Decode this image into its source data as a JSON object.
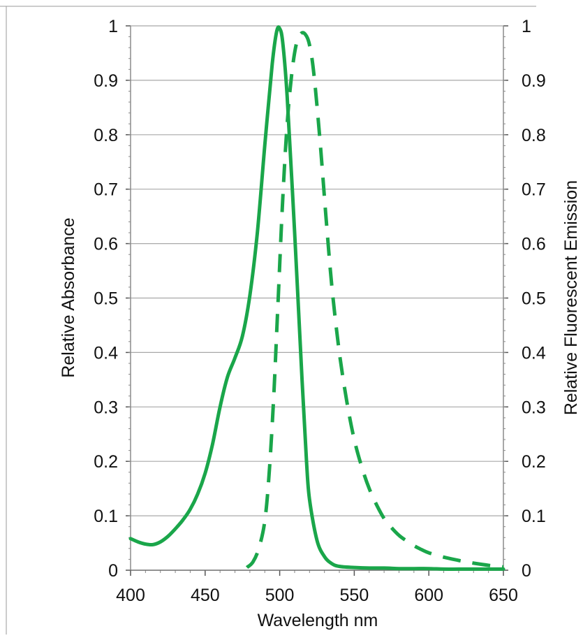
{
  "chart_data": {
    "type": "line",
    "xlabel": "Wavelength nm",
    "ylabel_left": "Relative Absorbance",
    "ylabel_right": "Relative Fluorescent Emission",
    "xlim": [
      400,
      650
    ],
    "ylim": [
      0,
      1
    ],
    "x_ticks": [
      "400",
      "450",
      "500",
      "550",
      "600",
      "650"
    ],
    "y_ticks": [
      "0",
      "0.1",
      "0.2",
      "0.3",
      "0.4",
      "0.5",
      "0.6",
      "0.7",
      "0.8",
      "0.9",
      "1"
    ],
    "grid": true,
    "color": "#1aa64a",
    "series": [
      {
        "style": "solid",
        "axis": "left",
        "points": [
          [
            400,
            0.058
          ],
          [
            405,
            0.052
          ],
          [
            410,
            0.048
          ],
          [
            415,
            0.047
          ],
          [
            420,
            0.052
          ],
          [
            425,
            0.062
          ],
          [
            430,
            0.076
          ],
          [
            435,
            0.092
          ],
          [
            440,
            0.112
          ],
          [
            445,
            0.14
          ],
          [
            450,
            0.178
          ],
          [
            455,
            0.232
          ],
          [
            460,
            0.3
          ],
          [
            465,
            0.355
          ],
          [
            470,
            0.39
          ],
          [
            475,
            0.43
          ],
          [
            480,
            0.505
          ],
          [
            485,
            0.62
          ],
          [
            490,
            0.78
          ],
          [
            495,
            0.93
          ],
          [
            498,
            0.99
          ],
          [
            500,
            0.995
          ],
          [
            502,
            0.97
          ],
          [
            505,
            0.87
          ],
          [
            510,
            0.62
          ],
          [
            515,
            0.35
          ],
          [
            518,
            0.2
          ],
          [
            520,
            0.13
          ],
          [
            525,
            0.055
          ],
          [
            530,
            0.025
          ],
          [
            535,
            0.012
          ],
          [
            540,
            0.007
          ],
          [
            550,
            0.005
          ],
          [
            560,
            0.004
          ],
          [
            570,
            0.004
          ],
          [
            580,
            0.003
          ],
          [
            590,
            0.003
          ],
          [
            600,
            0.003
          ],
          [
            610,
            0.002
          ],
          [
            620,
            0.002
          ],
          [
            630,
            0.002
          ],
          [
            640,
            0.002
          ],
          [
            650,
            0.002
          ]
        ]
      },
      {
        "style": "dashed",
        "axis": "right",
        "points": [
          [
            478,
            0.005
          ],
          [
            482,
            0.015
          ],
          [
            486,
            0.04
          ],
          [
            490,
            0.09
          ],
          [
            493,
            0.18
          ],
          [
            496,
            0.32
          ],
          [
            499,
            0.5
          ],
          [
            502,
            0.68
          ],
          [
            505,
            0.82
          ],
          [
            508,
            0.91
          ],
          [
            511,
            0.965
          ],
          [
            514,
            0.985
          ],
          [
            517,
            0.985
          ],
          [
            520,
            0.965
          ],
          [
            523,
            0.91
          ],
          [
            527,
            0.79
          ],
          [
            531,
            0.65
          ],
          [
            535,
            0.52
          ],
          [
            540,
            0.4
          ],
          [
            545,
            0.31
          ],
          [
            550,
            0.24
          ],
          [
            555,
            0.19
          ],
          [
            560,
            0.15
          ],
          [
            565,
            0.12
          ],
          [
            570,
            0.095
          ],
          [
            575,
            0.078
          ],
          [
            580,
            0.064
          ],
          [
            585,
            0.054
          ],
          [
            590,
            0.045
          ],
          [
            595,
            0.038
          ],
          [
            600,
            0.032
          ],
          [
            610,
            0.024
          ],
          [
            620,
            0.018
          ],
          [
            630,
            0.013
          ],
          [
            640,
            0.009
          ],
          [
            650,
            0.006
          ]
        ]
      }
    ]
  }
}
